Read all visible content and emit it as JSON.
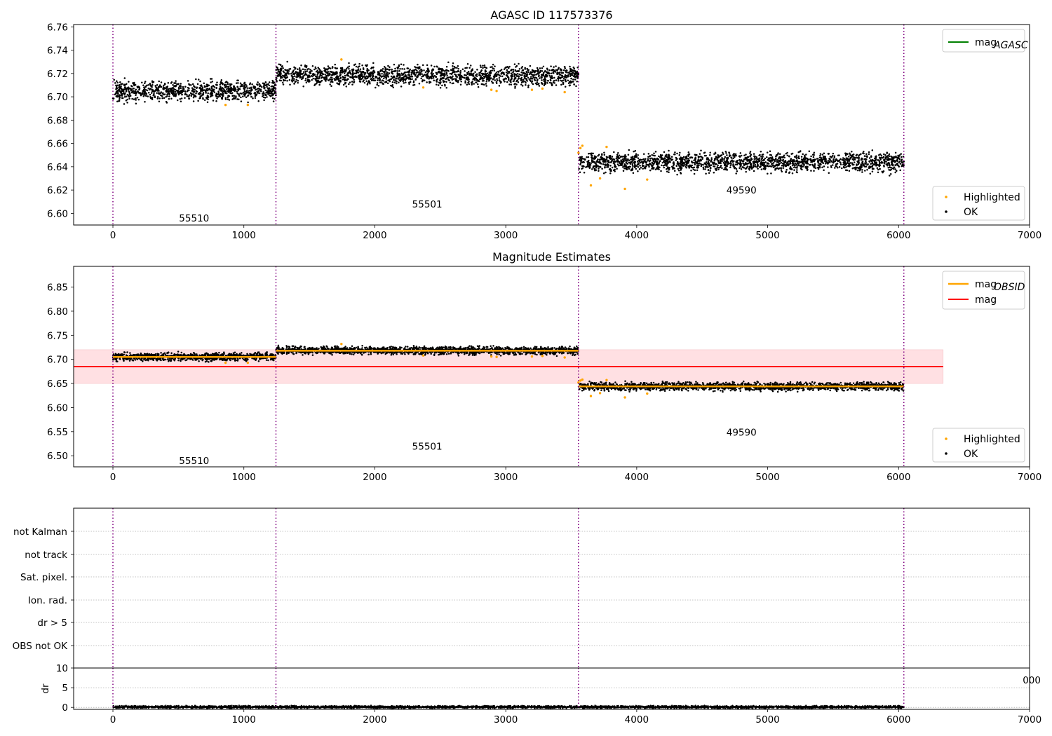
{
  "chart_data": [
    {
      "type": "scatter",
      "title": "AGASC ID 117573376",
      "xlim": [
        -300,
        7000
      ],
      "ylim": [
        6.59,
        6.762
      ],
      "xticks": [
        0,
        1000,
        2000,
        3000,
        4000,
        5000,
        6000,
        7000
      ],
      "yticks": [
        6.6,
        6.62,
        6.64,
        6.66,
        6.68,
        6.7,
        6.72,
        6.74,
        6.76
      ],
      "ytick_labels": [
        "6.60",
        "6.62",
        "6.64",
        "6.66",
        "6.68",
        "6.70",
        "6.72",
        "6.74",
        "6.76"
      ],
      "obsid_boundaries": [
        0,
        1245,
        3555,
        6040
      ],
      "obsid_labels": [
        {
          "text": "55510",
          "x": 620,
          "y": 6.596
        },
        {
          "text": "55501",
          "x": 2400,
          "y": 6.608
        },
        {
          "text": "49590",
          "x": 4800,
          "y": 6.62
        }
      ],
      "series": [
        {
          "name": "OK",
          "color": "#000000",
          "segments": [
            {
              "x0": 0,
              "x1": 1245,
              "y0": 6.7045,
              "y1": 6.7055,
              "spread": 0.004
            },
            {
              "x0": 1245,
              "x1": 3555,
              "y0": 6.719,
              "y1": 6.718,
              "spread": 0.004
            },
            {
              "x0": 3555,
              "x1": 6040,
              "y0": 6.644,
              "y1": 6.644,
              "spread": 0.004
            }
          ]
        },
        {
          "name": "Highlighted",
          "color": "#FFA500",
          "points": [
            [
              860,
              6.693
            ],
            [
              1030,
              6.693
            ],
            [
              1745,
              6.732
            ],
            [
              2370,
              6.708
            ],
            [
              2890,
              6.706
            ],
            [
              2930,
              6.705
            ],
            [
              3200,
              6.706
            ],
            [
              3280,
              6.707
            ],
            [
              3450,
              6.704
            ],
            [
              3555,
              6.652
            ],
            [
              3570,
              6.656
            ],
            [
              3585,
              6.658
            ],
            [
              3650,
              6.624
            ],
            [
              3720,
              6.63
            ],
            [
              3770,
              6.657
            ],
            [
              3910,
              6.621
            ],
            [
              4080,
              6.629
            ]
          ]
        }
      ],
      "reference_line": {
        "name": "mag_AGASC",
        "color": "#008000"
      },
      "legend_top": [
        {
          "label": "mag",
          "sub": "AGASC",
          "color": "#008000"
        }
      ],
      "legend_bottom": [
        {
          "label": "Highlighted",
          "color": "#FFA500"
        },
        {
          "label": "OK",
          "color": "#000000"
        }
      ]
    },
    {
      "type": "scatter",
      "title": "Magnitude Estimates",
      "xlim": [
        -300,
        7000
      ],
      "ylim": [
        6.477,
        6.893
      ],
      "xticks": [
        0,
        1000,
        2000,
        3000,
        4000,
        5000,
        6000,
        7000
      ],
      "yticks": [
        6.5,
        6.55,
        6.6,
        6.65,
        6.7,
        6.75,
        6.8,
        6.85
      ],
      "ytick_labels": [
        "6.50",
        "6.55",
        "6.60",
        "6.65",
        "6.70",
        "6.75",
        "6.80",
        "6.85"
      ],
      "obsid_boundaries": [
        0,
        1245,
        3555,
        6040
      ],
      "obsid_labels": [
        {
          "text": "55510",
          "x": 620,
          "y": 6.49
        },
        {
          "text": "55501",
          "x": 2400,
          "y": 6.52
        },
        {
          "text": "49590",
          "x": 4800,
          "y": 6.549
        }
      ],
      "mag": {
        "value": 6.685,
        "err_low": 6.65,
        "err_high": 6.72,
        "x0": -300,
        "x1": 6340,
        "color": "#FF0000",
        "band_color": "#FFE0E3"
      },
      "mag_obsid": [
        {
          "x0": 0,
          "x1": 1245,
          "value": 6.705
        },
        {
          "x0": 1245,
          "x1": 3555,
          "value": 6.718
        },
        {
          "x0": 3555,
          "x1": 6040,
          "value": 6.644
        }
      ],
      "series": [
        {
          "name": "OK",
          "color": "#000000",
          "segments": [
            {
              "x0": 0,
              "x1": 1245,
              "y0": 6.7045,
              "y1": 6.7055,
              "spread": 0.004
            },
            {
              "x0": 1245,
              "x1": 3555,
              "y0": 6.719,
              "y1": 6.718,
              "spread": 0.004
            },
            {
              "x0": 3555,
              "x1": 6040,
              "y0": 6.644,
              "y1": 6.644,
              "spread": 0.004
            }
          ]
        },
        {
          "name": "Highlighted",
          "color": "#FFA500",
          "points": [
            [
              860,
              6.693
            ],
            [
              1030,
              6.693
            ],
            [
              1745,
              6.732
            ],
            [
              2370,
              6.708
            ],
            [
              2890,
              6.706
            ],
            [
              2930,
              6.705
            ],
            [
              3200,
              6.706
            ],
            [
              3280,
              6.707
            ],
            [
              3450,
              6.704
            ],
            [
              3555,
              6.652
            ],
            [
              3570,
              6.656
            ],
            [
              3585,
              6.658
            ],
            [
              3650,
              6.624
            ],
            [
              3720,
              6.63
            ],
            [
              3770,
              6.657
            ],
            [
              3910,
              6.621
            ],
            [
              4080,
              6.629
            ]
          ]
        }
      ],
      "legend_top": [
        {
          "label": "mag",
          "sub": "OBSID",
          "color": "#FFA500"
        },
        {
          "label": "mag",
          "sub": "",
          "color": "#FF0000"
        }
      ],
      "legend_bottom": [
        {
          "label": "Highlighted",
          "color": "#FFA500"
        },
        {
          "label": "OK",
          "color": "#000000"
        }
      ]
    },
    {
      "type": "scatter",
      "title": "",
      "xlim": [
        -300,
        7000
      ],
      "obsid_boundaries": [
        0,
        1245,
        3555,
        6040
      ],
      "flag_categories": [
        "OBS not OK",
        "dr > 5",
        "Ion. rad.",
        "Sat. pixel.",
        "not track",
        "not Kalman"
      ],
      "flag_points": [],
      "partial_tick_label": "000"
    },
    {
      "type": "scatter",
      "title": "",
      "ylabel": "dr",
      "xlim": [
        -300,
        7000
      ],
      "ylim": [
        -0.5,
        10
      ],
      "xticks": [
        0,
        1000,
        2000,
        3000,
        4000,
        5000,
        6000,
        7000
      ],
      "yticks": [
        0,
        5,
        10
      ],
      "ytick_labels": [
        "0",
        "5",
        "10"
      ],
      "obsid_boundaries": [
        0,
        1245,
        3555,
        6040
      ],
      "series": [
        {
          "name": "dr",
          "color": "#000000",
          "segments": [
            {
              "x0": 0,
              "x1": 6040,
              "y0": 0.1,
              "y1": 0.1,
              "spread": 0.15
            }
          ]
        }
      ]
    }
  ]
}
